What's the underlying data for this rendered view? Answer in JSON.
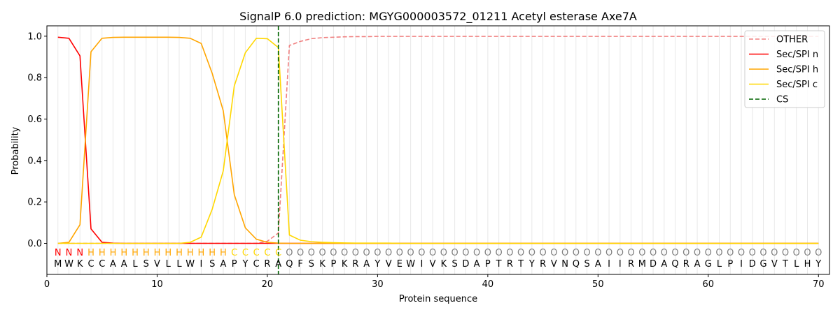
{
  "chart_data": {
    "type": "line",
    "title": "SignalP 6.0 prediction: MGYG000003572_01211 Acetyl esterase Axe7A",
    "xlabel": "Protein sequence",
    "ylabel": "Probability",
    "xlim": [
      0,
      71
    ],
    "ylim": [
      -0.15,
      1.05
    ],
    "x_ticks": [
      0,
      10,
      20,
      30,
      40,
      50,
      60,
      70
    ],
    "y_ticks": [
      0.0,
      0.2,
      0.4,
      0.6,
      0.8,
      1.0
    ],
    "y_tick_labels": [
      "0.0",
      "0.2",
      "0.4",
      "0.6",
      "0.8",
      "1.0"
    ],
    "grid": "vertical lines at each residue",
    "legend_position": "top-right",
    "sequence": [
      "M",
      "W",
      "K",
      "C",
      "C",
      "A",
      "A",
      "L",
      "S",
      "V",
      "L",
      "L",
      "W",
      "I",
      "S",
      "A",
      "P",
      "Y",
      "C",
      "R",
      "A",
      "Q",
      "F",
      "S",
      "K",
      "P",
      "K",
      "R",
      "A",
      "Y",
      "V",
      "E",
      "W",
      "I",
      "V",
      "K",
      "S",
      "D",
      "A",
      "P",
      "T",
      "R",
      "T",
      "Y",
      "R",
      "V",
      "N",
      "Q",
      "S",
      "A",
      "I",
      "I",
      "R",
      "M",
      "D",
      "A",
      "Q",
      "R",
      "A",
      "G",
      "L",
      "P",
      "I",
      "D",
      "G",
      "V",
      "T",
      "L",
      "H",
      "Y"
    ],
    "region_labels": [
      "N",
      "N",
      "N",
      "H",
      "H",
      "H",
      "H",
      "H",
      "H",
      "H",
      "H",
      "H",
      "H",
      "H",
      "H",
      "H",
      "C",
      "C",
      "C",
      "C",
      "C",
      "O",
      "O",
      "O",
      "O",
      "O",
      "O",
      "O",
      "O",
      "O",
      "O",
      "O",
      "O",
      "O",
      "O",
      "O",
      "O",
      "O",
      "O",
      "O",
      "O",
      "O",
      "O",
      "O",
      "O",
      "O",
      "O",
      "O",
      "O",
      "O",
      "O",
      "O",
      "O",
      "O",
      "O",
      "O",
      "O",
      "O",
      "O",
      "O",
      "O",
      "O",
      "O",
      "O",
      "O",
      "O",
      "O",
      "O",
      "O",
      "O"
    ],
    "region_colors": {
      "N": "#ff0000",
      "H": "#ffa500",
      "C": "#ffd700",
      "O": "#808080"
    },
    "cleavage_site": 21,
    "series": [
      {
        "name": "OTHER",
        "color": "#f08080",
        "dash": "dashed",
        "values": [
          0.0,
          0.0,
          0.0,
          0.0,
          0.0,
          0.0,
          0.0,
          0.0,
          0.0,
          0.0,
          0.0,
          0.0,
          0.0,
          0.0,
          0.0,
          0.0,
          0.0,
          0.0,
          0.0,
          0.01,
          0.05,
          0.955,
          0.975,
          0.988,
          0.993,
          0.995,
          0.997,
          0.998,
          0.998,
          0.999,
          0.999,
          0.999,
          0.999,
          0.999,
          0.999,
          0.999,
          0.999,
          0.999,
          0.999,
          0.999,
          0.999,
          0.999,
          0.999,
          0.999,
          0.999,
          0.999,
          0.999,
          0.999,
          0.999,
          0.999,
          0.999,
          0.999,
          0.999,
          0.999,
          0.999,
          0.999,
          0.999,
          0.999,
          0.999,
          0.999,
          0.999,
          0.999,
          0.999,
          0.999,
          0.999,
          0.999,
          0.999,
          0.999,
          0.999,
          0.999
        ]
      },
      {
        "name": "Sec/SPI n",
        "color": "#ff0000",
        "dash": "solid",
        "values": [
          0.995,
          0.99,
          0.905,
          0.07,
          0.005,
          0.001,
          0.0,
          0.0,
          0.0,
          0.0,
          0.0,
          0.0,
          0.0,
          0.0,
          0.0,
          0.0,
          0.0,
          0.0,
          0.0,
          0.0,
          0.0,
          0.0,
          0.0,
          0.0,
          0.0,
          0.0,
          0.0,
          0.0,
          0.0,
          0.0,
          0.0,
          0.0,
          0.0,
          0.0,
          0.0,
          0.0,
          0.0,
          0.0,
          0.0,
          0.0,
          0.0,
          0.0,
          0.0,
          0.0,
          0.0,
          0.0,
          0.0,
          0.0,
          0.0,
          0.0,
          0.0,
          0.0,
          0.0,
          0.0,
          0.0,
          0.0,
          0.0,
          0.0,
          0.0,
          0.0,
          0.0,
          0.0,
          0.0,
          0.0,
          0.0,
          0.0,
          0.0,
          0.0,
          0.0,
          0.0
        ]
      },
      {
        "name": "Sec/SPI h",
        "color": "#ffa500",
        "dash": "solid",
        "values": [
          0.0,
          0.005,
          0.09,
          0.925,
          0.99,
          0.994,
          0.995,
          0.995,
          0.995,
          0.995,
          0.995,
          0.994,
          0.99,
          0.965,
          0.82,
          0.64,
          0.235,
          0.075,
          0.02,
          0.005,
          0.001,
          0.0,
          0.0,
          0.0,
          0.0,
          0.0,
          0.0,
          0.0,
          0.0,
          0.0,
          0.0,
          0.0,
          0.0,
          0.0,
          0.0,
          0.0,
          0.0,
          0.0,
          0.0,
          0.0,
          0.0,
          0.0,
          0.0,
          0.0,
          0.0,
          0.0,
          0.0,
          0.0,
          0.0,
          0.0,
          0.0,
          0.0,
          0.0,
          0.0,
          0.0,
          0.0,
          0.0,
          0.0,
          0.0,
          0.0,
          0.0,
          0.0,
          0.0,
          0.0,
          0.0,
          0.0,
          0.0,
          0.0,
          0.0,
          0.0
        ]
      },
      {
        "name": "Sec/SPI c",
        "color": "#ffd700",
        "dash": "solid",
        "values": [
          0.0,
          0.0,
          0.0,
          0.0,
          0.0,
          0.0,
          0.0,
          0.0,
          0.0,
          0.0,
          0.0,
          0.0,
          0.005,
          0.03,
          0.165,
          0.35,
          0.76,
          0.92,
          0.99,
          0.988,
          0.945,
          0.04,
          0.015,
          0.008,
          0.005,
          0.003,
          0.002,
          0.001,
          0.001,
          0.001,
          0.001,
          0.0,
          0.0,
          0.0,
          0.0,
          0.0,
          0.0,
          0.0,
          0.0,
          0.0,
          0.0,
          0.0,
          0.0,
          0.0,
          0.0,
          0.0,
          0.0,
          0.0,
          0.0,
          0.0,
          0.0,
          0.0,
          0.0,
          0.0,
          0.0,
          0.0,
          0.0,
          0.0,
          0.0,
          0.0,
          0.0,
          0.0,
          0.0,
          0.0,
          0.0,
          0.0,
          0.0,
          0.0,
          0.0,
          0.0
        ]
      },
      {
        "name": "CS",
        "color": "#006400",
        "dash": "dashed",
        "values": []
      }
    ]
  }
}
